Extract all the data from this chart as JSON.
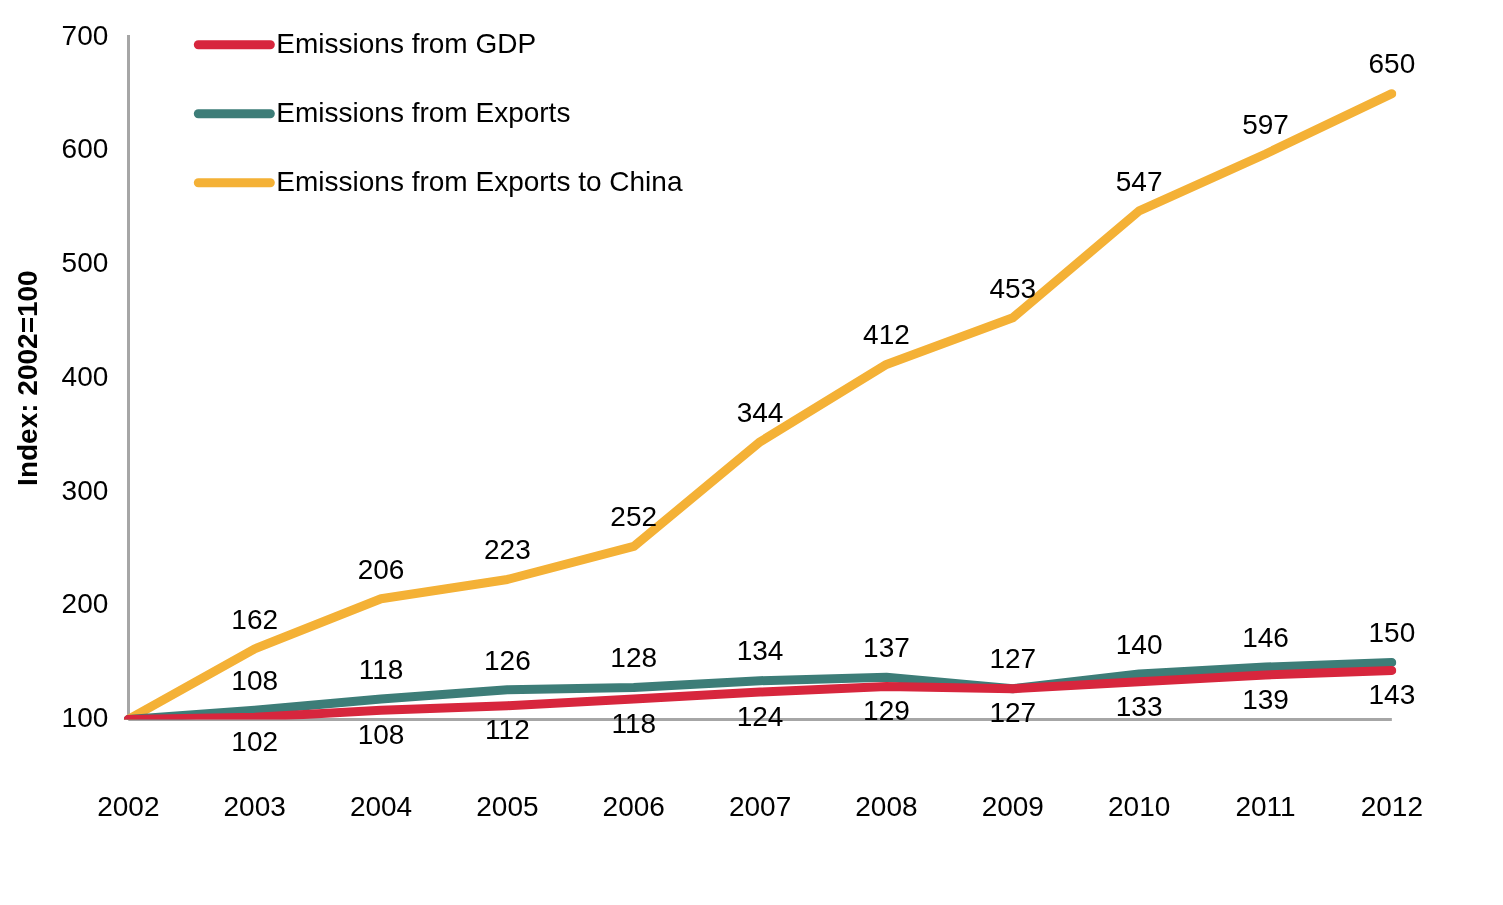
{
  "chart_data": {
    "type": "line",
    "ylabel": "Index: 2002=100",
    "categories": [
      "2002",
      "2003",
      "2004",
      "2005",
      "2006",
      "2007",
      "2008",
      "2009",
      "2010",
      "2011",
      "2012"
    ],
    "series": [
      {
        "name": "Emissions from GDP",
        "color": "#d7263d",
        "values": [
          100,
          102,
          108,
          112,
          118,
          124,
          129,
          127,
          133,
          139,
          143
        ],
        "value_labels": [
          null,
          "102",
          "108",
          "112",
          "118",
          "124",
          "129",
          "127",
          "133",
          "139",
          "143"
        ]
      },
      {
        "name": "Emissions from Exports",
        "color": "#3d7d78",
        "values": [
          100,
          108,
          118,
          126,
          128,
          134,
          137,
          127,
          140,
          146,
          150
        ],
        "value_labels": [
          null,
          "108",
          "118",
          "126",
          "128",
          "134",
          "137",
          "127",
          "140",
          "146",
          "150"
        ]
      },
      {
        "name": "Emissions from Exports to China",
        "color": "#f4b136",
        "values": [
          100,
          162,
          206,
          223,
          252,
          344,
          412,
          453,
          547,
          597,
          650
        ],
        "value_labels": [
          null,
          "162",
          "206",
          "223",
          "252",
          "344",
          "412",
          "453",
          "547",
          "597",
          "650"
        ]
      }
    ],
    "ylim": [
      100,
      700
    ],
    "yticks": [
      100,
      200,
      300,
      400,
      500,
      600,
      700
    ],
    "grid": false,
    "legend": "top left",
    "marker": "none",
    "line_style": "solid"
  }
}
